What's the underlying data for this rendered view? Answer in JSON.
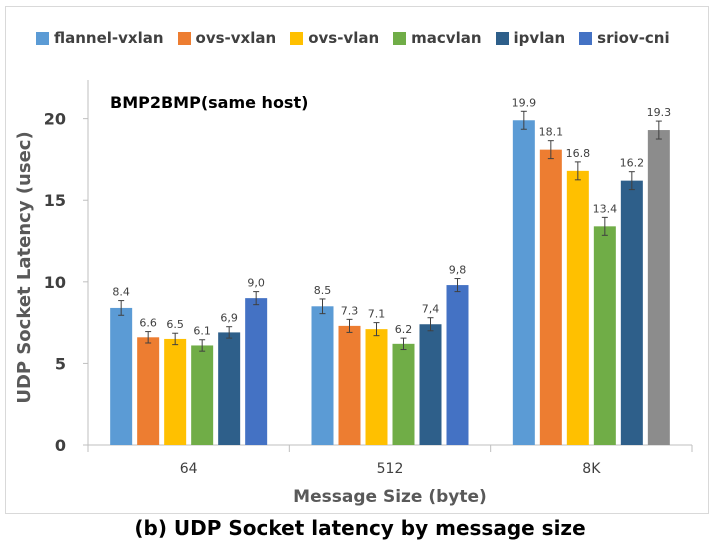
{
  "caption": "(b) UDP Socket latency by message size",
  "chart_data": {
    "type": "bar",
    "annotation": "BMP2BMP(same host)",
    "xlabel": "Message Size (byte)",
    "ylabel": "UDP Socket Latency (usec)",
    "ylim": [
      0,
      22
    ],
    "yticks": [
      0,
      5,
      10,
      15,
      20
    ],
    "legend_position": "top",
    "grid": false,
    "categories": [
      "64",
      "512",
      "8K"
    ],
    "series": [
      {
        "name": "flannel-vxlan",
        "color": "#5b9bd5",
        "values": [
          8.4,
          8.5,
          19.9
        ],
        "labels": [
          "8.4",
          "8.5",
          "19.9"
        ],
        "errors": [
          0.45,
          0.45,
          0.55
        ]
      },
      {
        "name": "ovs-vxlan",
        "color": "#ed7d31",
        "values": [
          6.6,
          7.3,
          18.1
        ],
        "labels": [
          "6.6",
          "7.3",
          "18.1"
        ],
        "errors": [
          0.35,
          0.4,
          0.55
        ]
      },
      {
        "name": "ovs-vlan",
        "color": "#ffc000",
        "values": [
          6.5,
          7.1,
          16.8
        ],
        "labels": [
          "6.5",
          "7.1",
          "16.8"
        ],
        "errors": [
          0.35,
          0.4,
          0.55
        ]
      },
      {
        "name": "macvlan",
        "color": "#70ad47",
        "values": [
          6.1,
          6.2,
          13.4
        ],
        "labels": [
          "6.1",
          "6.2",
          "13.4"
        ],
        "errors": [
          0.35,
          0.35,
          0.55
        ]
      },
      {
        "name": "ipvlan",
        "color": "#2e5f8a",
        "values": [
          6.9,
          7.4,
          16.2
        ],
        "labels": [
          "6,9",
          "7,4",
          "16.2"
        ],
        "errors": [
          0.35,
          0.4,
          0.55
        ]
      },
      {
        "name": "sriov-cni",
        "color": "#4472c4",
        "values": [
          9.0,
          9.8,
          19.3
        ],
        "labels": [
          "9,0",
          "9,8",
          "19.3"
        ],
        "errors": [
          0.4,
          0.4,
          0.55
        ],
        "bar_colors": [
          "#4472c4",
          "#4472c4",
          "#8c8c8c"
        ]
      }
    ]
  }
}
